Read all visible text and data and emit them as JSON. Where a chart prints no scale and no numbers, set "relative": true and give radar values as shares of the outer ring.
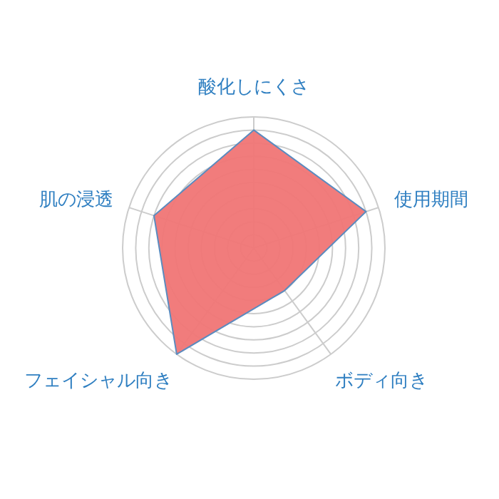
{
  "chart_data": {
    "type": "radar",
    "relative": true,
    "grid": true,
    "categories": [
      "酸化しにくさ",
      "使用期間",
      "ボディ向き",
      "フェイシャル向き",
      "肌の浸透"
    ],
    "series": [
      {
        "color": "#f07575",
        "values": [
          0.9,
          0.9,
          0.4,
          1.0,
          0.8
        ]
      }
    ]
  }
}
